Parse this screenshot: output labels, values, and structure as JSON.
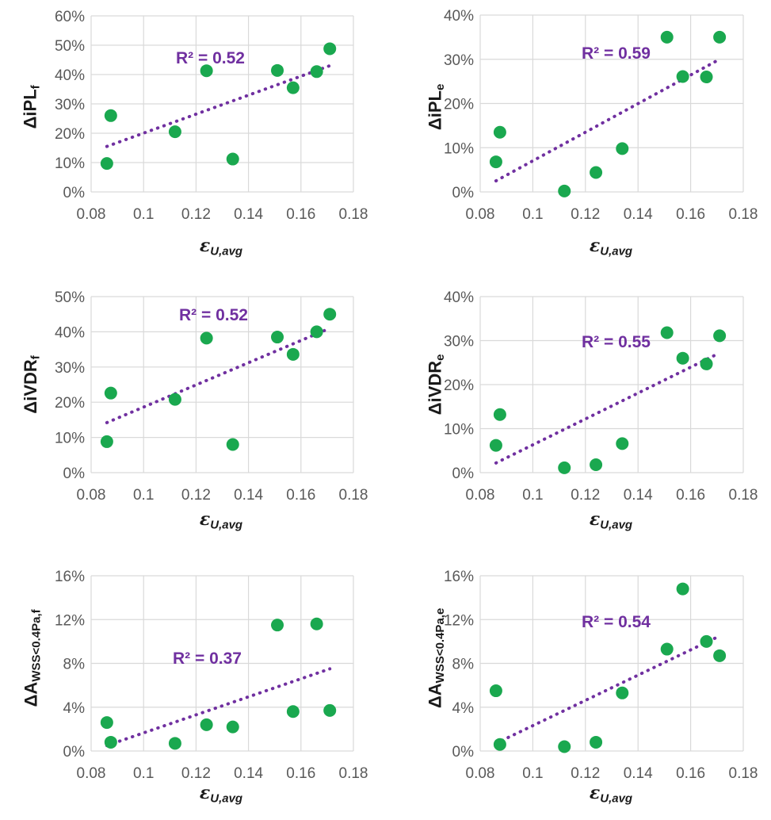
{
  "colors": {
    "marker": "#1aa84f",
    "trendline": "#7030a0",
    "grid": "#d9d9d9",
    "tick_text": "#595959"
  },
  "chart_data": [
    {
      "type": "scatter",
      "ylabel": {
        "main": "ΔiPL",
        "sub": "f"
      },
      "xlabel": {
        "main": "ε",
        "sub": "U,avg"
      },
      "xlim": [
        0.08,
        0.18
      ],
      "xticks": [
        0.08,
        0.1,
        0.12,
        0.14,
        0.16,
        0.18
      ],
      "xtick_labels": [
        "0.08",
        "0.1",
        "0.12",
        "0.14",
        "0.16",
        "0.18"
      ],
      "ylim": [
        0,
        0.6
      ],
      "yticks": [
        0,
        0.1,
        0.2,
        0.3,
        0.4,
        0.5,
        0.6
      ],
      "ytick_labels": [
        "0%",
        "10%",
        "20%",
        "30%",
        "40%",
        "50%",
        "60%"
      ],
      "grid": true,
      "points": [
        [
          0.086,
          0.097
        ],
        [
          0.0875,
          0.26
        ],
        [
          0.112,
          0.205
        ],
        [
          0.124,
          0.413
        ],
        [
          0.134,
          0.112
        ],
        [
          0.151,
          0.414
        ],
        [
          0.157,
          0.355
        ],
        [
          0.166,
          0.41
        ],
        [
          0.171,
          0.488
        ]
      ],
      "trendline": {
        "type": "linear",
        "x_range": [
          0.086,
          0.171
        ],
        "y_range": [
          0.155,
          0.43
        ],
        "r2_label": "R² = 0.52"
      }
    },
    {
      "type": "scatter",
      "ylabel": {
        "main": "ΔiPL",
        "sub": "e"
      },
      "xlabel": {
        "main": "ε",
        "sub": "U,avg"
      },
      "xlim": [
        0.08,
        0.18
      ],
      "xticks": [
        0.08,
        0.1,
        0.12,
        0.14,
        0.16,
        0.18
      ],
      "xtick_labels": [
        "0.08",
        "0.1",
        "0.12",
        "0.14",
        "0.16",
        "0.18"
      ],
      "ylim": [
        0,
        0.4
      ],
      "yticks": [
        0,
        0.1,
        0.2,
        0.3,
        0.4
      ],
      "ytick_labels": [
        "0%",
        "10%",
        "20%",
        "30%",
        "40%"
      ],
      "grid": true,
      "points": [
        [
          0.086,
          0.068
        ],
        [
          0.0875,
          0.135
        ],
        [
          0.112,
          0.002
        ],
        [
          0.124,
          0.044
        ],
        [
          0.134,
          0.098
        ],
        [
          0.151,
          0.35
        ],
        [
          0.157,
          0.261
        ],
        [
          0.166,
          0.26
        ],
        [
          0.171,
          0.35
        ]
      ],
      "trendline": {
        "type": "linear",
        "x_range": [
          0.086,
          0.171
        ],
        "y_range": [
          0.025,
          0.3
        ],
        "r2_label": "R² = 0.59"
      }
    },
    {
      "type": "scatter",
      "ylabel": {
        "main": "ΔiVDR",
        "sub": "f"
      },
      "xlabel": {
        "main": "ε",
        "sub": "U,avg"
      },
      "xlim": [
        0.08,
        0.18
      ],
      "xticks": [
        0.08,
        0.1,
        0.12,
        0.14,
        0.16,
        0.18
      ],
      "xtick_labels": [
        "0.08",
        "0.1",
        "0.12",
        "0.14",
        "0.16",
        "0.18"
      ],
      "ylim": [
        0,
        0.5
      ],
      "yticks": [
        0,
        0.1,
        0.2,
        0.3,
        0.4,
        0.5
      ],
      "ytick_labels": [
        "0%",
        "10%",
        "20%",
        "30%",
        "40%",
        "50%"
      ],
      "grid": true,
      "points": [
        [
          0.086,
          0.088
        ],
        [
          0.0875,
          0.226
        ],
        [
          0.112,
          0.208
        ],
        [
          0.124,
          0.382
        ],
        [
          0.134,
          0.08
        ],
        [
          0.151,
          0.385
        ],
        [
          0.157,
          0.336
        ],
        [
          0.166,
          0.4
        ],
        [
          0.171,
          0.45
        ]
      ],
      "trendline": {
        "type": "linear",
        "x_range": [
          0.086,
          0.171
        ],
        "y_range": [
          0.142,
          0.41
        ],
        "r2_label": "R² = 0.52"
      }
    },
    {
      "type": "scatter",
      "ylabel": {
        "main": "ΔiVDR",
        "sub": "e"
      },
      "xlabel": {
        "main": "ε",
        "sub": "U,avg"
      },
      "xlim": [
        0.08,
        0.18
      ],
      "xticks": [
        0.08,
        0.1,
        0.12,
        0.14,
        0.16,
        0.18
      ],
      "xtick_labels": [
        "0.08",
        "0.1",
        "0.12",
        "0.14",
        "0.16",
        "0.18"
      ],
      "ylim": [
        0,
        0.4
      ],
      "yticks": [
        0,
        0.1,
        0.2,
        0.3,
        0.4
      ],
      "ytick_labels": [
        "0%",
        "10%",
        "20%",
        "30%",
        "40%"
      ],
      "grid": true,
      "points": [
        [
          0.086,
          0.062
        ],
        [
          0.0875,
          0.132
        ],
        [
          0.112,
          0.011
        ],
        [
          0.124,
          0.018
        ],
        [
          0.134,
          0.066
        ],
        [
          0.151,
          0.318
        ],
        [
          0.157,
          0.26
        ],
        [
          0.166,
          0.247
        ],
        [
          0.171,
          0.311
        ]
      ],
      "trendline": {
        "type": "linear",
        "x_range": [
          0.086,
          0.171
        ],
        "y_range": [
          0.022,
          0.272
        ],
        "r2_label": "R² = 0.55"
      }
    },
    {
      "type": "scatter",
      "ylabel": {
        "main": "ΔA",
        "sub": "WSS<0.4Pa,f"
      },
      "xlabel": {
        "main": "ε",
        "sub": "U,avg"
      },
      "xlim": [
        0.08,
        0.18
      ],
      "xticks": [
        0.08,
        0.1,
        0.12,
        0.14,
        0.16,
        0.18
      ],
      "xtick_labels": [
        "0.08",
        "0.1",
        "0.12",
        "0.14",
        "0.16",
        "0.18"
      ],
      "ylim": [
        0,
        0.16
      ],
      "yticks": [
        0,
        0.04,
        0.08,
        0.12,
        0.16
      ],
      "ytick_labels": [
        "0%",
        "4%",
        "8%",
        "12%",
        "16%"
      ],
      "grid": true,
      "points": [
        [
          0.086,
          0.026
        ],
        [
          0.0875,
          0.008
        ],
        [
          0.112,
          0.007
        ],
        [
          0.124,
          0.024
        ],
        [
          0.134,
          0.022
        ],
        [
          0.151,
          0.115
        ],
        [
          0.157,
          0.036
        ],
        [
          0.166,
          0.116
        ],
        [
          0.171,
          0.037
        ]
      ],
      "trendline": {
        "type": "linear",
        "x_range": [
          0.086,
          0.171
        ],
        "y_range": [
          0.005,
          0.075
        ],
        "r2_label": "R² = 0.37"
      }
    },
    {
      "type": "scatter",
      "ylabel": {
        "main": "ΔA",
        "sub": "WSS<0.4Pa,e"
      },
      "xlabel": {
        "main": "ε",
        "sub": "U,avg"
      },
      "xlim": [
        0.08,
        0.18
      ],
      "xticks": [
        0.08,
        0.1,
        0.12,
        0.14,
        0.16,
        0.18
      ],
      "xtick_labels": [
        "0.08",
        "0.1",
        "0.12",
        "0.14",
        "0.16",
        "0.18"
      ],
      "ylim": [
        0,
        0.16
      ],
      "yticks": [
        0,
        0.04,
        0.08,
        0.12,
        0.16
      ],
      "ytick_labels": [
        "0%",
        "4%",
        "8%",
        "12%",
        "16%"
      ],
      "grid": true,
      "points": [
        [
          0.086,
          0.055
        ],
        [
          0.0875,
          0.006
        ],
        [
          0.112,
          0.004
        ],
        [
          0.124,
          0.008
        ],
        [
          0.134,
          0.053
        ],
        [
          0.151,
          0.093
        ],
        [
          0.157,
          0.148
        ],
        [
          0.166,
          0.1
        ],
        [
          0.171,
          0.087
        ]
      ],
      "trendline": {
        "type": "linear",
        "x_range": [
          0.086,
          0.171
        ],
        "y_range": [
          0.007,
          0.105
        ],
        "r2_label": "R² = 0.54"
      }
    }
  ]
}
